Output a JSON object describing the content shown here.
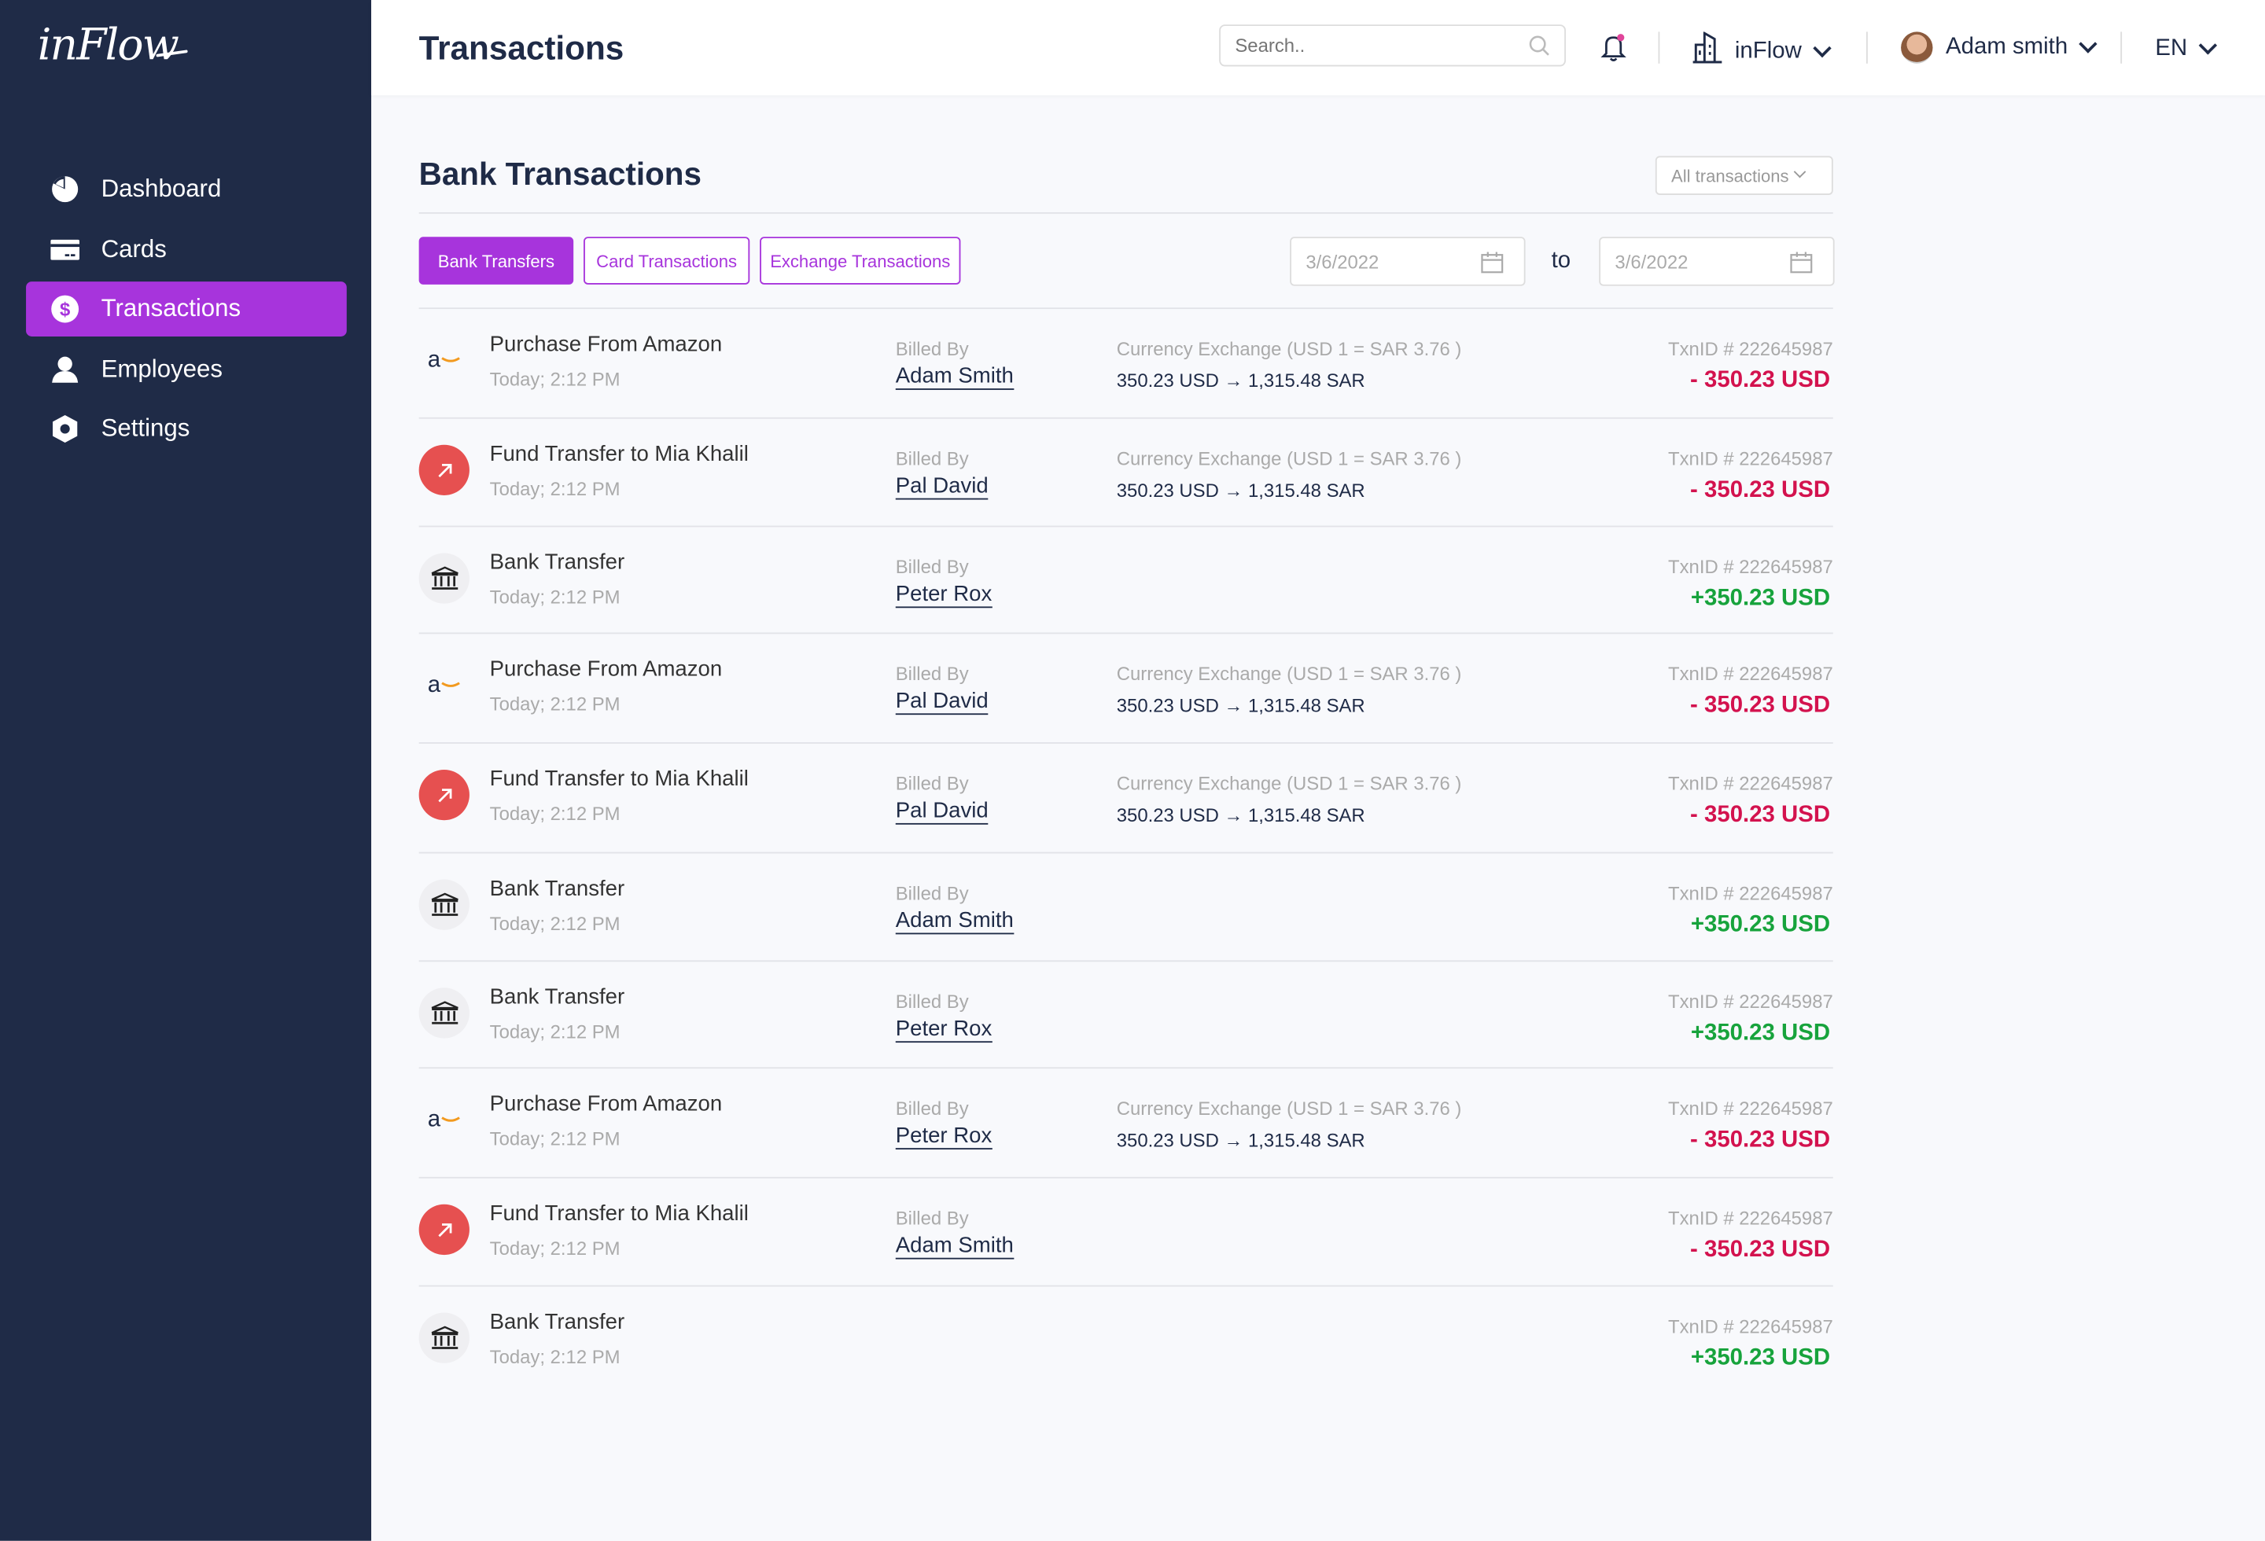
{
  "app": {
    "logo": "inFlow"
  },
  "sidebar": {
    "items": [
      {
        "label": "Dashboard",
        "icon": "pie-chart-icon"
      },
      {
        "label": "Cards",
        "icon": "card-icon"
      },
      {
        "label": "Transactions",
        "icon": "dollar-icon",
        "active": true
      },
      {
        "label": "Employees",
        "icon": "user-icon"
      },
      {
        "label": "Settings",
        "icon": "hexagon-settings-icon"
      }
    ]
  },
  "header": {
    "title": "Transactions",
    "search_placeholder": "Search..",
    "company": "inFlow",
    "user": "Adam smith",
    "language": "EN"
  },
  "main": {
    "title": "Bank Transactions",
    "filter": "All transactions",
    "tabs": [
      {
        "label": "Bank Transfers",
        "active": true
      },
      {
        "label": "Card Transactions"
      },
      {
        "label": "Exchange Transactions"
      }
    ],
    "date_from": "3/6/2022",
    "to_label": "to",
    "date_to": "3/6/2022",
    "billed_by_label": "Billed By",
    "colors": {
      "accent": "#a734dc",
      "debit": "#d3124e",
      "credit": "#17a33c",
      "sidebar": "#1f2b47"
    },
    "rows": [
      {
        "type": "amazon",
        "title": "Purchase From Amazon",
        "date": "Today; 2:12 PM",
        "billed_by": "Adam Smith",
        "exchange_label": "Currency Exchange (USD 1 = SAR 3.76 )",
        "exchange": "350.23 USD → 1,315.48 SAR",
        "txn": "TxnID # 222645987",
        "amount": "- 350.23 USD",
        "direction": "debit"
      },
      {
        "type": "fund",
        "title": "Fund Transfer to Mia Khalil",
        "date": "Today; 2:12 PM",
        "billed_by": "Pal David",
        "exchange_label": "Currency Exchange (USD 1 = SAR 3.76 )",
        "exchange": "350.23 USD → 1,315.48 SAR",
        "txn": "TxnID # 222645987",
        "amount": "- 350.23 USD",
        "direction": "debit"
      },
      {
        "type": "bank",
        "title": "Bank Transfer",
        "date": "Today; 2:12 PM",
        "billed_by": "Peter Rox",
        "txn": "TxnID # 222645987",
        "amount": "+350.23 USD",
        "direction": "credit"
      },
      {
        "type": "amazon",
        "title": "Purchase From Amazon",
        "date": "Today; 2:12 PM",
        "billed_by": "Pal David",
        "exchange_label": "Currency Exchange (USD 1 = SAR 3.76 )",
        "exchange": "350.23 USD → 1,315.48 SAR",
        "txn": "TxnID # 222645987",
        "amount": "- 350.23 USD",
        "direction": "debit"
      },
      {
        "type": "fund",
        "title": "Fund Transfer to Mia Khalil",
        "date": "Today; 2:12 PM",
        "billed_by": "Pal David",
        "exchange_label": "Currency Exchange (USD 1 = SAR 3.76 )",
        "exchange": "350.23 USD → 1,315.48 SAR",
        "txn": "TxnID # 222645987",
        "amount": "- 350.23 USD",
        "direction": "debit"
      },
      {
        "type": "bank",
        "title": "Bank Transfer",
        "date": "Today; 2:12 PM",
        "billed_by": "Adam Smith",
        "txn": "TxnID # 222645987",
        "amount": "+350.23 USD",
        "direction": "credit"
      },
      {
        "type": "bank",
        "title": "Bank Transfer",
        "date": "Today; 2:12 PM",
        "billed_by": "Peter Rox",
        "txn": "TxnID # 222645987",
        "amount": "+350.23 USD",
        "direction": "credit"
      },
      {
        "type": "amazon",
        "title": "Purchase From Amazon",
        "date": "Today; 2:12 PM",
        "billed_by": "Peter Rox",
        "exchange_label": "Currency Exchange (USD 1 = SAR 3.76 )",
        "exchange": "350.23 USD → 1,315.48 SAR",
        "txn": "TxnID # 222645987",
        "amount": "- 350.23 USD",
        "direction": "debit"
      },
      {
        "type": "fund",
        "title": "Fund Transfer to Mia Khalil",
        "date": "Today; 2:12 PM",
        "billed_by": "Adam Smith",
        "txn": "TxnID # 222645987",
        "amount": "- 350.23 USD",
        "direction": "debit"
      },
      {
        "type": "bank",
        "title": "Bank Transfer",
        "date": "Today; 2:12 PM",
        "txn": "TxnID # 222645987",
        "amount": "+350.23 USD",
        "direction": "credit"
      }
    ]
  }
}
